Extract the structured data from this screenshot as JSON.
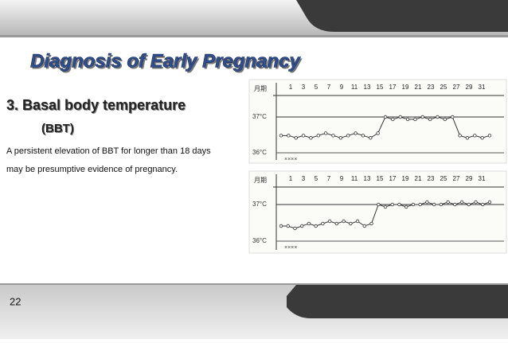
{
  "slide": {
    "title": "Diagnosis of Early Pregnancy",
    "heading": "3. Basal body temperature",
    "subheading": "(BBT)",
    "body": [
      "A persistent elevation of BBT for longer than 18 days",
      "may be presumptive evidence of pregnancy."
    ],
    "page_number": "22"
  },
  "figures": [
    {
      "month_label": "月期",
      "days": [
        "1",
        "3",
        "5",
        "7",
        "9",
        "11",
        "13",
        "15",
        "17",
        "19",
        "21",
        "23",
        "25",
        "27",
        "29",
        "31"
      ],
      "temp_high": "37°C",
      "temp_low": "36°C"
    },
    {
      "month_label": "月期",
      "days": [
        "1",
        "3",
        "5",
        "7",
        "9",
        "11",
        "13",
        "15",
        "17",
        "19",
        "21",
        "23",
        "25",
        "27",
        "29",
        "31"
      ],
      "temp_high": "37°C",
      "temp_low": "36°C"
    }
  ]
}
